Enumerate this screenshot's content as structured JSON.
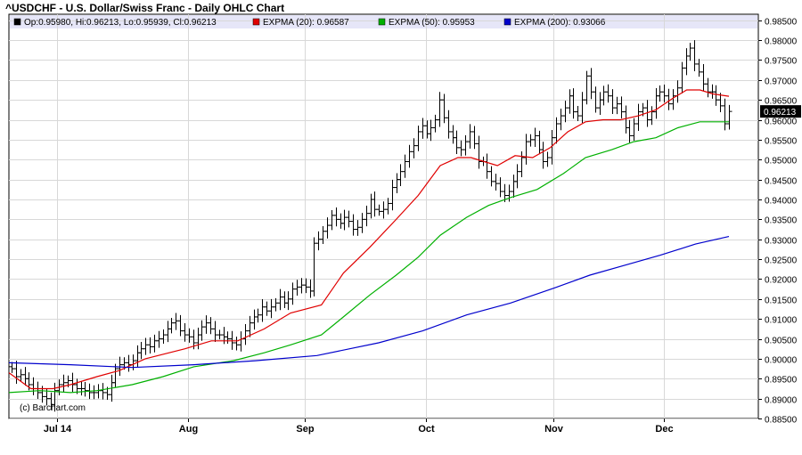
{
  "title": "^USDCHF - U.S. Dollar/Swiss Franc - Daily OHLC Chart",
  "legend": {
    "ohlc": "Op:0.95980, Hi:0.96213, Lo:0.95939, Cl:0.96213",
    "ema20": "EXPMA (20): 0.96587",
    "ema50": "EXPMA (50): 0.95953",
    "ema200": "EXPMA (200): 0.93066"
  },
  "watermark": "(c) Barchart.com",
  "last_price_label": "0.96213",
  "colors": {
    "ohlc": "#000000",
    "ema20": "#e00000",
    "ema50": "#00b000",
    "ema200": "#0000cc",
    "legend_bg": "#e6e6f8",
    "price_tag_bg": "#000000"
  },
  "chart_data": {
    "type": "ohlc",
    "x_labels": [
      "Jul 14",
      "Aug",
      "Sep",
      "Oct",
      "Nov",
      "Dec"
    ],
    "y_ticks": [
      0.885,
      0.89,
      0.895,
      0.9,
      0.905,
      0.91,
      0.915,
      0.92,
      0.925,
      0.93,
      0.935,
      0.94,
      0.945,
      0.95,
      0.955,
      0.96,
      0.965,
      0.97,
      0.975,
      0.98,
      0.985
    ],
    "y_tick_labels": [
      "0.88500",
      "0.89000",
      "0.89500",
      "0.90000",
      "0.90500",
      "0.91000",
      "0.91500",
      "0.92000",
      "0.92500",
      "0.93000",
      "0.93500",
      "0.94000",
      "0.94500",
      "0.95000",
      "0.95500",
      "0.96000",
      "0.96500",
      "0.97000",
      "0.97500",
      "0.98000",
      "0.98500"
    ],
    "ylim": [
      0.885,
      0.9865
    ],
    "grid": true,
    "closes": [
      0.8975,
      0.8955,
      0.896,
      0.895,
      0.8935,
      0.8925,
      0.8915,
      0.8905,
      0.89,
      0.8885,
      0.892,
      0.8935,
      0.894,
      0.8945,
      0.8935,
      0.8925,
      0.8925,
      0.892,
      0.8915,
      0.8915,
      0.892,
      0.8915,
      0.891,
      0.894,
      0.8975,
      0.8985,
      0.899,
      0.8985,
      0.8995,
      0.9015,
      0.9025,
      0.9035,
      0.903,
      0.9045,
      0.905,
      0.906,
      0.9075,
      0.909,
      0.9095,
      0.907,
      0.906,
      0.9055,
      0.904,
      0.906,
      0.908,
      0.909,
      0.9075,
      0.906,
      0.906,
      0.9055,
      0.905,
      0.904,
      0.9035,
      0.905,
      0.907,
      0.909,
      0.9105,
      0.911,
      0.913,
      0.912,
      0.913,
      0.914,
      0.9155,
      0.914,
      0.915,
      0.9175,
      0.918,
      0.9185,
      0.918,
      0.917,
      0.929,
      0.93,
      0.932,
      0.9335,
      0.936,
      0.935,
      0.934,
      0.9355,
      0.9345,
      0.9325,
      0.933,
      0.935,
      0.9365,
      0.94,
      0.9375,
      0.937,
      0.9375,
      0.939,
      0.943,
      0.945,
      0.947,
      0.9495,
      0.952,
      0.9535,
      0.957,
      0.9585,
      0.9565,
      0.958,
      0.96,
      0.965,
      0.9605,
      0.957,
      0.9555,
      0.953,
      0.9525,
      0.9545,
      0.957,
      0.954,
      0.9495,
      0.9495,
      0.947,
      0.9445,
      0.944,
      0.942,
      0.941,
      0.942,
      0.9445,
      0.947,
      0.9505,
      0.9545,
      0.955,
      0.956,
      0.9525,
      0.9495,
      0.9505,
      0.9555,
      0.959,
      0.961,
      0.963,
      0.966,
      0.962,
      0.961,
      0.965,
      0.971,
      0.967,
      0.963,
      0.965,
      0.967,
      0.966,
      0.963,
      0.964,
      0.962,
      0.958,
      0.956,
      0.959,
      0.962,
      0.963,
      0.96,
      0.962,
      0.966,
      0.967,
      0.966,
      0.964,
      0.966,
      0.968,
      0.973,
      0.976,
      0.978,
      0.974,
      0.972,
      0.969,
      0.967,
      0.967,
      0.965,
      0.9635,
      0.959,
      0.9621
    ],
    "series": [
      {
        "name": "EXPMA (20)",
        "values": [
          [
            0,
            0.8965
          ],
          [
            25,
            0.8925
          ],
          [
            50,
            0.8925
          ],
          [
            70,
            0.8935
          ],
          [
            100,
            0.8955
          ],
          [
            125,
            0.897
          ],
          [
            155,
            0.9
          ],
          [
            200,
            0.9025
          ],
          [
            230,
            0.9045
          ],
          [
            260,
            0.9045
          ],
          [
            290,
            0.9075
          ],
          [
            320,
            0.9115
          ],
          [
            355,
            0.9135
          ],
          [
            380,
            0.9215
          ],
          [
            410,
            0.928
          ],
          [
            440,
            0.935
          ],
          [
            465,
            0.941
          ],
          [
            490,
            0.9485
          ],
          [
            510,
            0.9505
          ],
          [
            525,
            0.9505
          ],
          [
            540,
            0.9495
          ],
          [
            555,
            0.9485
          ],
          [
            575,
            0.951
          ],
          [
            595,
            0.9505
          ],
          [
            615,
            0.953
          ],
          [
            635,
            0.957
          ],
          [
            655,
            0.9595
          ],
          [
            675,
            0.96
          ],
          [
            695,
            0.96
          ],
          [
            715,
            0.961
          ],
          [
            735,
            0.9625
          ],
          [
            755,
            0.9655
          ],
          [
            770,
            0.9675
          ],
          [
            785,
            0.9675
          ],
          [
            800,
            0.9665
          ],
          [
            818,
            0.9659
          ]
        ]
      },
      {
        "name": "EXPMA (50)",
        "values": [
          [
            0,
            0.8915
          ],
          [
            35,
            0.892
          ],
          [
            70,
            0.8915
          ],
          [
            100,
            0.892
          ],
          [
            140,
            0.8935
          ],
          [
            175,
            0.8955
          ],
          [
            210,
            0.898
          ],
          [
            255,
            0.8995
          ],
          [
            290,
            0.9015
          ],
          [
            320,
            0.9035
          ],
          [
            355,
            0.906
          ],
          [
            380,
            0.9105
          ],
          [
            410,
            0.916
          ],
          [
            440,
            0.921
          ],
          [
            465,
            0.9255
          ],
          [
            490,
            0.931
          ],
          [
            520,
            0.9355
          ],
          [
            545,
            0.9385
          ],
          [
            570,
            0.9405
          ],
          [
            600,
            0.9425
          ],
          [
            630,
            0.9465
          ],
          [
            655,
            0.9505
          ],
          [
            685,
            0.9525
          ],
          [
            710,
            0.9545
          ],
          [
            735,
            0.9555
          ],
          [
            760,
            0.958
          ],
          [
            785,
            0.9595
          ],
          [
            818,
            0.9595
          ]
        ]
      },
      {
        "name": "EXPMA (200)",
        "values": [
          [
            0,
            0.899
          ],
          [
            70,
            0.8985
          ],
          [
            140,
            0.8978
          ],
          [
            210,
            0.8985
          ],
          [
            280,
            0.8995
          ],
          [
            350,
            0.9008
          ],
          [
            420,
            0.904
          ],
          [
            470,
            0.907
          ],
          [
            520,
            0.911
          ],
          [
            570,
            0.914
          ],
          [
            620,
            0.9178
          ],
          [
            660,
            0.921
          ],
          [
            700,
            0.9235
          ],
          [
            740,
            0.926
          ],
          [
            780,
            0.9288
          ],
          [
            818,
            0.9307
          ]
        ]
      }
    ]
  }
}
